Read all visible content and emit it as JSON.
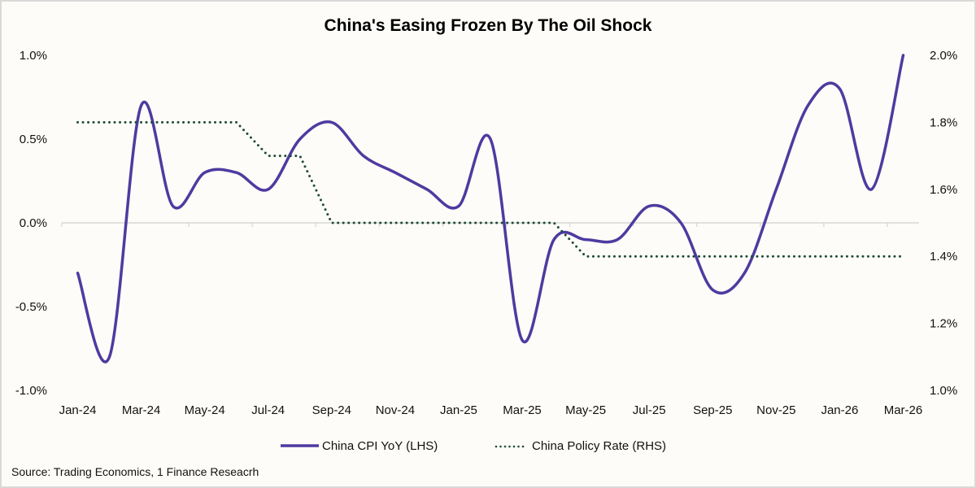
{
  "chart_data": {
    "type": "line",
    "title": "China's Easing Frozen By The Oil Shock",
    "x": [
      "Jan-24",
      "Feb-24",
      "Mar-24",
      "Apr-24",
      "May-24",
      "Jun-24",
      "Jul-24",
      "Aug-24",
      "Sep-24",
      "Oct-24",
      "Nov-24",
      "Dec-24",
      "Jan-25",
      "Feb-25",
      "Mar-25",
      "Apr-25",
      "May-25",
      "Jun-25",
      "Jul-25",
      "Aug-25",
      "Sep-25",
      "Oct-25",
      "Nov-25",
      "Dec-25",
      "Jan-26",
      "Feb-26",
      "Mar-26"
    ],
    "x_tick_labels": [
      "Jan-24",
      "Mar-24",
      "May-24",
      "Jul-24",
      "Sep-24",
      "Nov-24",
      "Jan-25",
      "Mar-25",
      "May-25",
      "Jul-25",
      "Sep-25",
      "Nov-25",
      "Jan-26",
      "Mar-26"
    ],
    "series": [
      {
        "name": "China CPI YoY (LHS)",
        "axis": "left",
        "style": "solid-smooth",
        "color": "#4f3aa0",
        "values": [
          -0.3,
          -0.8,
          0.7,
          0.1,
          0.3,
          0.3,
          0.2,
          0.5,
          0.6,
          0.4,
          0.3,
          0.2,
          0.1,
          0.5,
          -0.7,
          -0.1,
          -0.1,
          -0.1,
          0.1,
          0.0,
          -0.4,
          -0.3,
          0.2,
          0.7,
          0.8,
          0.2,
          1.0
        ]
      },
      {
        "name": "China Policy Rate (RHS)",
        "axis": "right",
        "style": "dotted",
        "color": "#1f4a3a",
        "values": [
          1.8,
          1.8,
          1.8,
          1.8,
          1.8,
          1.8,
          1.7,
          1.7,
          1.5,
          1.5,
          1.5,
          1.5,
          1.5,
          1.5,
          1.5,
          1.5,
          1.4,
          1.4,
          1.4,
          1.4,
          1.4,
          1.4,
          1.4,
          1.4,
          1.4,
          1.4,
          1.4
        ]
      }
    ],
    "y_left": {
      "ylim": [
        -1.0,
        1.0
      ],
      "ticks": [
        1.0,
        0.5,
        0.0,
        -0.5,
        -1.0
      ],
      "tick_labels": [
        "1.0%",
        "0.5%",
        "0.0%",
        "-0.5%",
        "-1.0%"
      ]
    },
    "y_right": {
      "ylim": [
        1.0,
        2.0
      ],
      "ticks": [
        2.0,
        1.8,
        1.6,
        1.4,
        1.2,
        1.0
      ],
      "tick_labels": [
        "2.0%",
        "1.8%",
        "1.6%",
        "1.4%",
        "1.2%",
        "1.0%"
      ]
    },
    "xlabel": "",
    "ylabel": "",
    "grid": false,
    "legend_position": "bottom-center",
    "source": "Source: Trading Economics, 1 Finance Reseacrh"
  }
}
